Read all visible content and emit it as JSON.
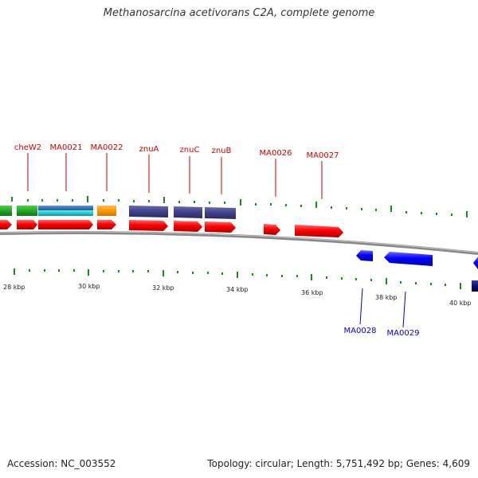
{
  "title": "Methanosarcina acetivorans C2A, complete genome",
  "footer": {
    "accession": "Accession: NC_003552",
    "topology": "Topology: circular; Length: 5,751,492 bp; Genes: 4,609"
  },
  "colors": {
    "forward_gene": "#ff0000",
    "reverse_gene": "#0000ff",
    "tick": "#1a8a1a",
    "backbone": "#888888",
    "label_forward": "#cc0000",
    "label_reverse": "#0000cc"
  },
  "scale_labels": [
    "28 kbp",
    "30 kbp",
    "32 kbp",
    "34 kbp",
    "36 kbp",
    "38 kbp",
    "40 kbp"
  ],
  "forward_gene_labels": [
    "cheW2",
    "MA0021",
    "MA0022",
    "znuA",
    "znuC",
    "znuB",
    "MA0026",
    "MA0027"
  ],
  "reverse_gene_labels": [
    "MA0028",
    "MA0029"
  ]
}
